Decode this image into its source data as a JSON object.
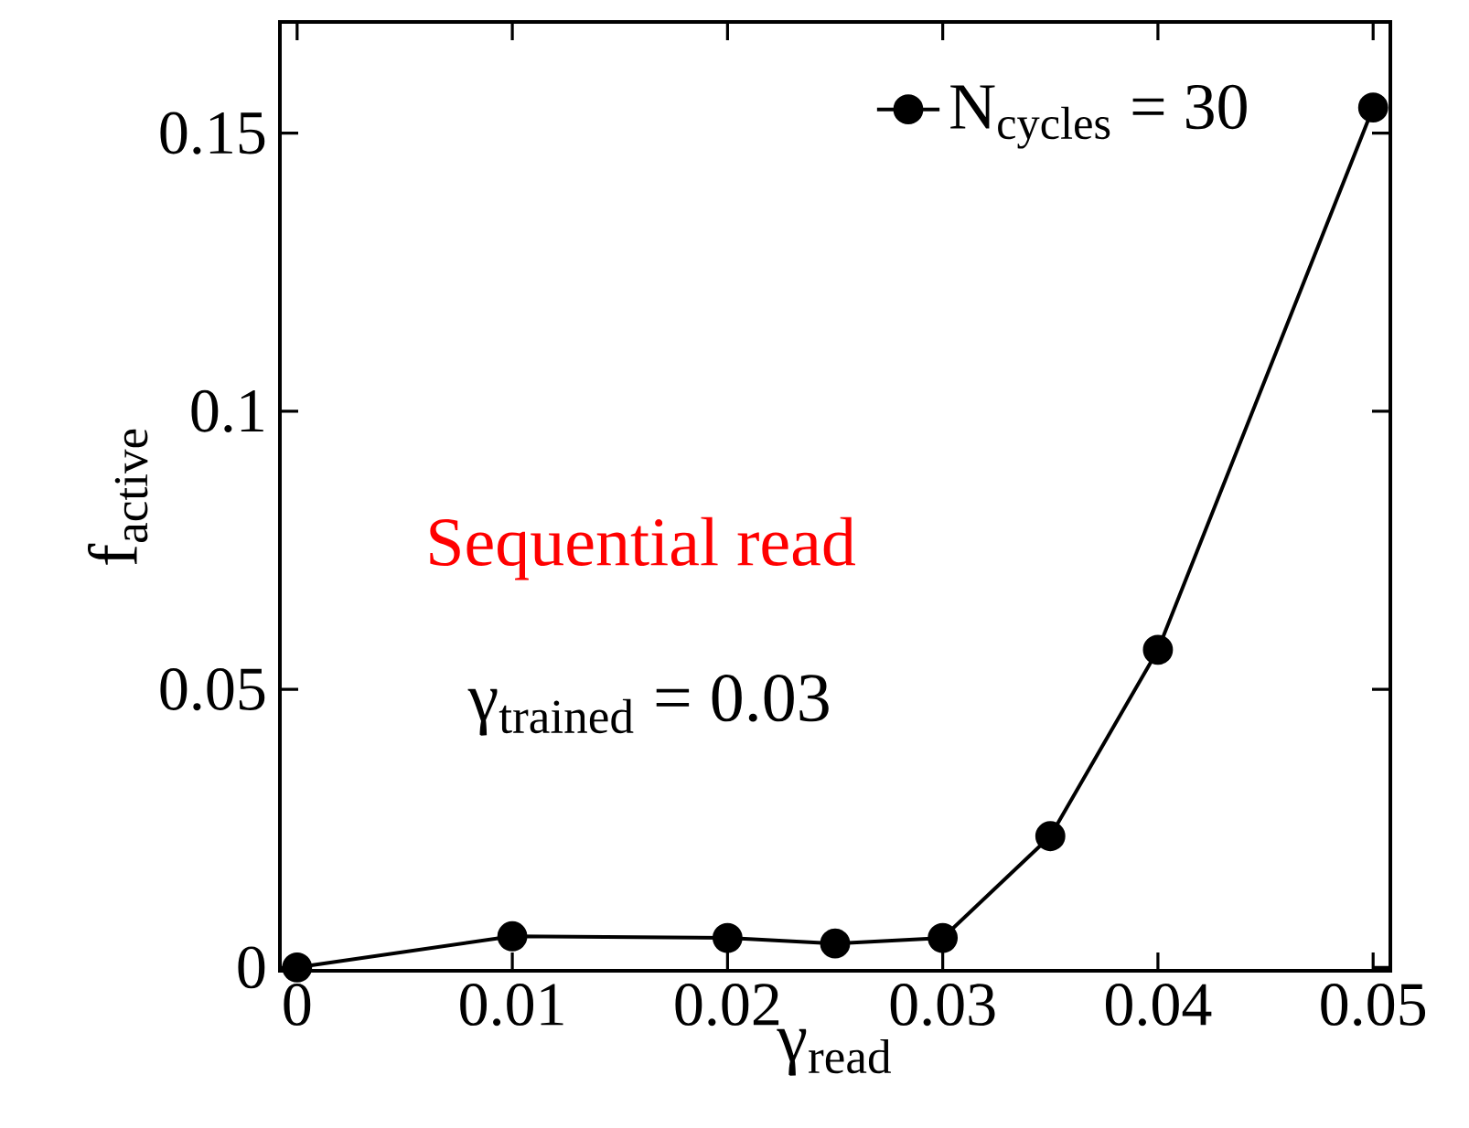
{
  "chart_data": {
    "type": "line",
    "xlabel": "γ$_{read}$",
    "ylabel": "f$_{active}$",
    "x": [
      0,
      0.01,
      0.02,
      0.025,
      0.03,
      0.035,
      0.04,
      0.05
    ],
    "series": [
      {
        "name": "N$_{cycles}$ = 30",
        "color": "#000000",
        "values": [
          0.0,
          0.0056,
          0.0053,
          0.0043,
          0.0053,
          0.0236,
          0.0571,
          0.1546
        ]
      }
    ],
    "xlim": [
      -0.0008,
      0.0508
    ],
    "ylim": [
      -0.0006,
      0.17
    ],
    "xticks": [
      0,
      0.01,
      0.02,
      0.03,
      0.04,
      0.05
    ],
    "yticks": [
      0,
      0.05,
      {
        "value": 0.1,
        "label": "0.1"
      },
      0.15
    ],
    "annotations": [
      "Sequential read",
      "γ$_{trained}$ = 0.03"
    ],
    "legend": "top right",
    "marker": "circle",
    "line_style": "solid",
    "grid": false
  }
}
